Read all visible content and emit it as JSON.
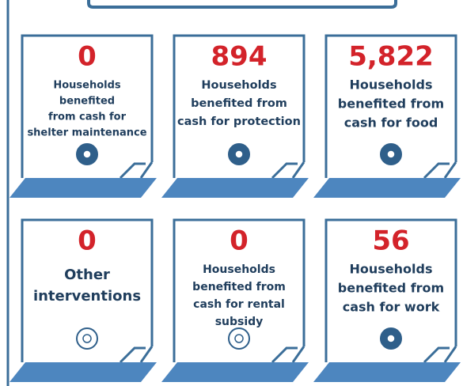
{
  "cards": [
    {
      "value": "0",
      "label": [
        "Households",
        "benefited",
        "from cash for",
        "shelter maintenance"
      ]
    },
    {
      "value": "894",
      "label": [
        "Households",
        "benefited from",
        "cash for protection"
      ]
    },
    {
      "value": "5,822",
      "label": [
        "Households",
        "benefited from",
        "cash for food"
      ]
    },
    {
      "value": "0",
      "label": [
        "Other",
        "interventions"
      ]
    },
    {
      "value": "0",
      "label": [
        "Households",
        "benefited from",
        "cash for rental",
        "subsidy"
      ]
    },
    {
      "value": "56",
      "label": [
        "Households",
        "benefited from",
        "cash for work"
      ]
    }
  ]
}
